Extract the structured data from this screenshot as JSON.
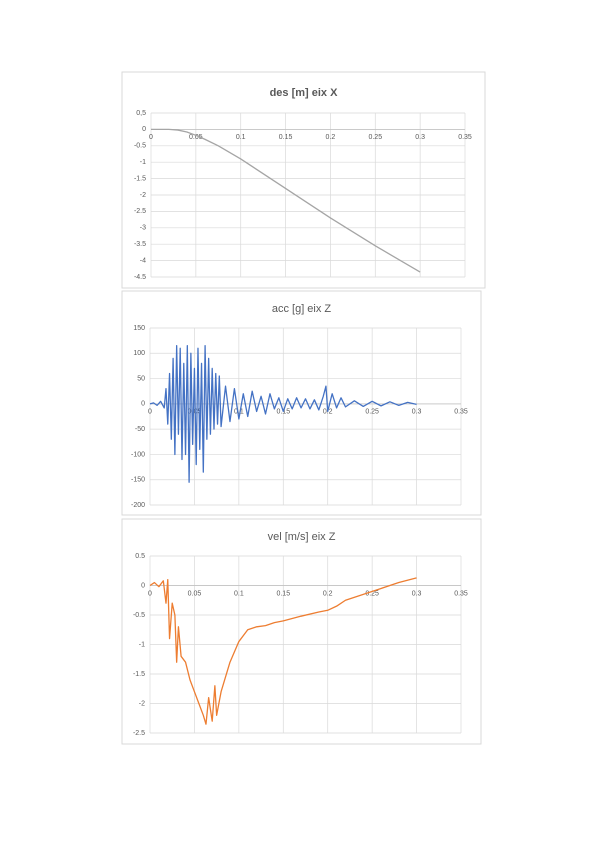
{
  "chart_data": [
    {
      "type": "line",
      "title": "des [m] eix X",
      "bold_title": true,
      "color": "#a5a5a5",
      "grid": true,
      "x": [
        0,
        0.01,
        0.02,
        0.03,
        0.04,
        0.05,
        0.06,
        0.075,
        0.1,
        0.15,
        0.2,
        0.25,
        0.3
      ],
      "values": [
        0,
        0,
        0,
        -0.02,
        -0.08,
        -0.18,
        -0.3,
        -0.5,
        -0.9,
        -1.8,
        -2.7,
        -3.55,
        -4.35
      ],
      "xlim": [
        0,
        0.35
      ],
      "xticks": [
        0,
        0.05,
        0.1,
        0.15,
        0.2,
        0.25,
        0.3,
        0.35
      ],
      "ylim": [
        -4.5,
        0.5
      ],
      "yticks": [
        {
          "value": 0.5,
          "label": "0,5"
        },
        0,
        -0.5,
        -1,
        -1.5,
        -2,
        -2.5,
        -3,
        -3.5,
        -4,
        -4.5
      ]
    },
    {
      "type": "line",
      "title": "acc [g] eix Z",
      "bold_title": false,
      "color": "#4472c4",
      "grid": true,
      "x": [
        0,
        0.004,
        0.008,
        0.012,
        0.016,
        0.018,
        0.02,
        0.022,
        0.024,
        0.026,
        0.028,
        0.03,
        0.032,
        0.034,
        0.036,
        0.038,
        0.04,
        0.042,
        0.044,
        0.046,
        0.048,
        0.05,
        0.052,
        0.054,
        0.056,
        0.058,
        0.06,
        0.062,
        0.064,
        0.066,
        0.068,
        0.07,
        0.072,
        0.074,
        0.076,
        0.078,
        0.08,
        0.085,
        0.09,
        0.095,
        0.1,
        0.105,
        0.11,
        0.115,
        0.12,
        0.125,
        0.13,
        0.135,
        0.14,
        0.145,
        0.15,
        0.155,
        0.16,
        0.165,
        0.17,
        0.175,
        0.18,
        0.185,
        0.19,
        0.195,
        0.198,
        0.2,
        0.205,
        0.21,
        0.215,
        0.22,
        0.23,
        0.24,
        0.25,
        0.26,
        0.27,
        0.28,
        0.29,
        0.3
      ],
      "values": [
        0,
        2,
        -3,
        5,
        -8,
        30,
        -40,
        60,
        -70,
        90,
        -100,
        115,
        -60,
        110,
        -110,
        80,
        -100,
        115,
        -155,
        100,
        -80,
        70,
        -120,
        110,
        -90,
        80,
        -135,
        115,
        -70,
        90,
        -60,
        70,
        -50,
        60,
        -40,
        55,
        -45,
        35,
        -35,
        30,
        -30,
        20,
        -25,
        25,
        -15,
        15,
        -20,
        20,
        -10,
        12,
        -15,
        10,
        -10,
        12,
        -8,
        10,
        -10,
        8,
        -12,
        15,
        35,
        -15,
        20,
        -8,
        12,
        -6,
        6,
        -5,
        5,
        -4,
        4,
        -3,
        3,
        -1
      ],
      "xlim": [
        0,
        0.35
      ],
      "xticks": [
        0,
        0.05,
        0.1,
        0.15,
        0.2,
        0.25,
        0.3,
        0.35
      ],
      "ylim": [
        -200,
        150
      ],
      "yticks": [
        150,
        100,
        50,
        0,
        -50,
        -100,
        -150,
        -200
      ]
    },
    {
      "type": "line",
      "title": "vel [m/s] eix Z",
      "bold_title": false,
      "color": "#ed7d31",
      "grid": true,
      "x": [
        0,
        0.005,
        0.01,
        0.015,
        0.018,
        0.02,
        0.022,
        0.025,
        0.028,
        0.03,
        0.032,
        0.035,
        0.04,
        0.045,
        0.05,
        0.055,
        0.06,
        0.063,
        0.066,
        0.07,
        0.073,
        0.075,
        0.08,
        0.09,
        0.1,
        0.11,
        0.12,
        0.13,
        0.14,
        0.15,
        0.17,
        0.19,
        0.2,
        0.21,
        0.22,
        0.24,
        0.26,
        0.28,
        0.3
      ],
      "values": [
        0,
        0.05,
        -0.02,
        0.08,
        -0.3,
        0.1,
        -0.9,
        -0.3,
        -0.5,
        -1.3,
        -0.7,
        -1.2,
        -1.3,
        -1.6,
        -1.8,
        -2.0,
        -2.2,
        -2.35,
        -1.9,
        -2.3,
        -1.7,
        -2.2,
        -1.8,
        -1.3,
        -0.95,
        -0.75,
        -0.7,
        -0.68,
        -0.63,
        -0.6,
        -0.52,
        -0.45,
        -0.42,
        -0.35,
        -0.25,
        -0.15,
        -0.05,
        0.05,
        0.13
      ],
      "xlim": [
        0,
        0.35
      ],
      "xticks": [
        0,
        0.05,
        0.1,
        0.15,
        0.2,
        0.25,
        0.3,
        0.35
      ],
      "ylim": [
        -2.5,
        0.5
      ],
      "yticks": [
        0.5,
        0,
        -0.5,
        -1,
        -1.5,
        -2,
        -2.5
      ]
    }
  ]
}
